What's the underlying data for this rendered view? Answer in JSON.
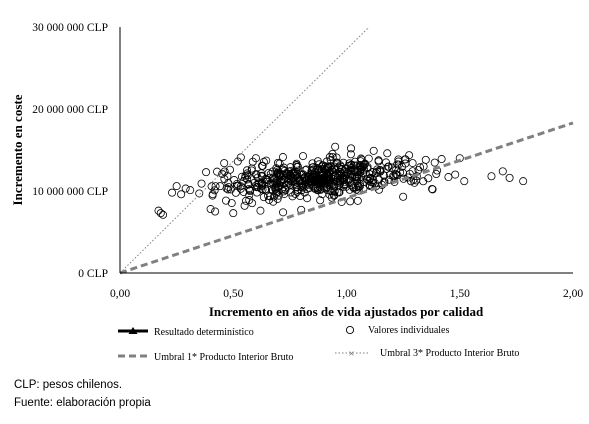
{
  "chart_data": {
    "type": "scatter",
    "xlabel": "Incremento en años de vida ajustados por calidad",
    "ylabel": "Incremento  en coste",
    "xlim": [
      0,
      2
    ],
    "ylim": [
      0,
      30000000
    ],
    "x_ticks": [
      "0,00",
      "0,50",
      "1,00",
      "1,50",
      "2,00"
    ],
    "y_ticks": [
      "0 CLP",
      "10 000 000 CLP",
      "20 000 000 CLP",
      "30 000 000 CLP"
    ],
    "grid": false,
    "legend_position": "bottom",
    "series": [
      {
        "name": "Resultado determinístico",
        "kind": "point",
        "points": [
          [
            0.88,
            11600000
          ]
        ]
      },
      {
        "name": "Valores individuales",
        "kind": "scatter-cloud",
        "cloud": {
          "n": 560,
          "x_mean": 0.87,
          "x_sd": 0.21,
          "y_mean": 11500000,
          "y_sd": 1150000,
          "corr": 0.4
        },
        "points": [
          [
            0.17,
            7600000
          ],
          [
            0.18,
            7300000
          ],
          [
            0.19,
            7100000
          ],
          [
            0.23,
            9800000
          ],
          [
            0.25,
            10600000
          ],
          [
            0.27,
            9600000
          ],
          [
            0.29,
            10300000
          ],
          [
            0.31,
            10100000
          ],
          [
            0.35,
            9700000
          ],
          [
            0.36,
            10900000
          ],
          [
            0.38,
            12300000
          ],
          [
            0.4,
            7800000
          ],
          [
            0.42,
            7500000
          ],
          [
            0.46,
            13400000
          ],
          [
            0.5,
            7300000
          ],
          [
            0.52,
            13600000
          ],
          [
            0.55,
            8200000
          ],
          [
            0.6,
            14000000
          ],
          [
            0.62,
            7600000
          ],
          [
            0.72,
            7400000
          ],
          [
            0.8,
            7700000
          ],
          [
            0.95,
            15400000
          ],
          [
            1.02,
            15200000
          ],
          [
            1.05,
            8800000
          ],
          [
            1.12,
            14900000
          ],
          [
            1.18,
            14600000
          ],
          [
            1.25,
            9300000
          ],
          [
            1.3,
            11000000
          ],
          [
            1.35,
            13800000
          ],
          [
            1.38,
            10200000
          ],
          [
            1.4,
            12500000
          ],
          [
            1.42,
            13900000
          ],
          [
            1.45,
            11700000
          ],
          [
            1.48,
            12000000
          ],
          [
            1.5,
            14000000
          ],
          [
            1.52,
            11200000
          ],
          [
            1.64,
            11800000
          ],
          [
            1.69,
            12400000
          ],
          [
            1.72,
            11600000
          ],
          [
            1.78,
            11200000
          ]
        ]
      },
      {
        "name": "Umbral 1* Producto Interior Bruto",
        "kind": "line",
        "style": "dashed",
        "color": "#808080",
        "points": [
          [
            0,
            0
          ],
          [
            2,
            18300000
          ]
        ]
      },
      {
        "name": "Umbral 3* Producto Interior Bruto",
        "kind": "line",
        "style": "dotted",
        "color": "#808080",
        "points": [
          [
            0,
            0
          ],
          [
            1.1,
            30000000
          ]
        ]
      }
    ]
  },
  "footnotes": {
    "line1": "CLP: pesos chilenos.",
    "line2": "Fuente: elaboración propia"
  }
}
